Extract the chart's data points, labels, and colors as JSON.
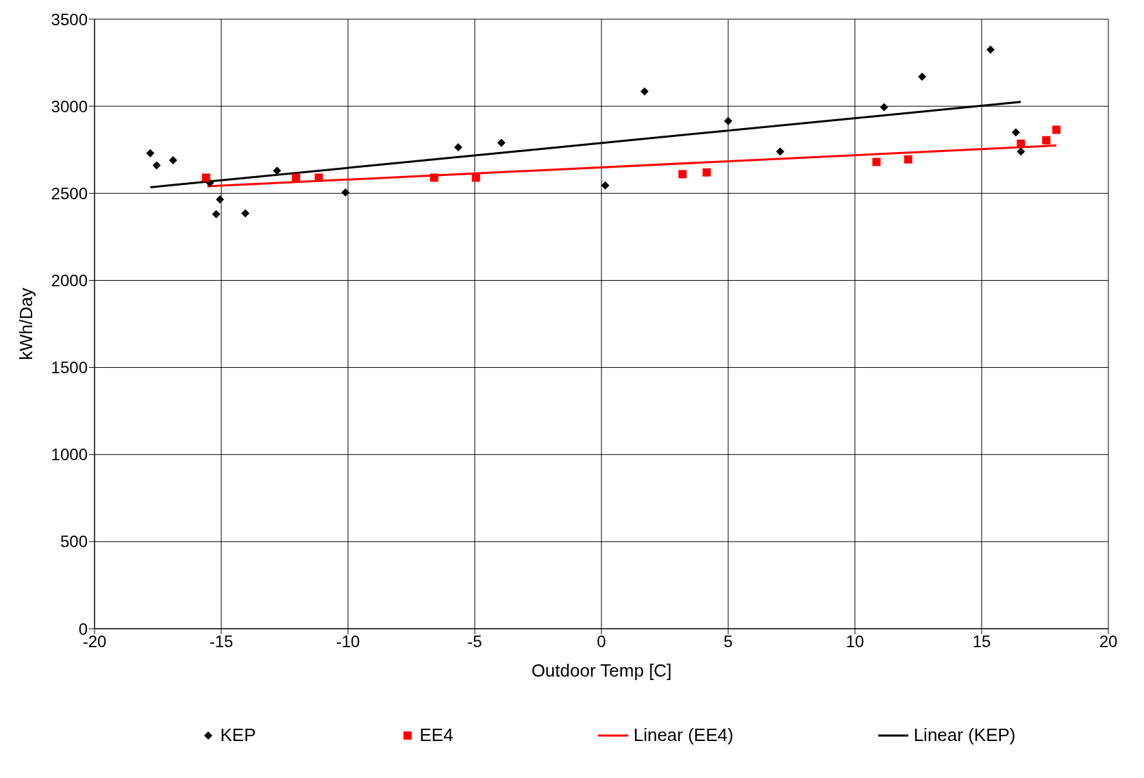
{
  "chart_data": {
    "type": "scatter",
    "xlabel": "Outdoor Temp [C]",
    "ylabel": "kWh/Day",
    "xlim": [
      -20,
      20
    ],
    "xticks": [
      -20,
      -15,
      -10,
      -5,
      0,
      5,
      10,
      15,
      20
    ],
    "ylim": [
      0,
      3500
    ],
    "yticks": [
      0,
      500,
      1000,
      1500,
      2000,
      2500,
      3000,
      3500
    ],
    "grid": true,
    "legend": "bottom",
    "series": [
      {
        "name": "KEP",
        "marker": "diamond",
        "color": "#000000",
        "x": [
          -17.8,
          -17.55,
          -16.9,
          -15.45,
          -15.2,
          -15.05,
          -14.05,
          -12.8,
          -10.1,
          -5.65,
          -3.95,
          0.15,
          1.7,
          5.0,
          7.05,
          11.15,
          12.65,
          15.35,
          16.35,
          16.55
        ],
        "values": [
          2730,
          2660,
          2690,
          2560,
          2380,
          2465,
          2385,
          2630,
          2505,
          2765,
          2790,
          2545,
          3085,
          2915,
          2740,
          2995,
          3170,
          3325,
          2850,
          2740
        ]
      },
      {
        "name": "EE4",
        "marker": "square",
        "color": "#ff0000",
        "x": [
          -15.6,
          -12.05,
          -11.15,
          -6.6,
          -4.95,
          3.2,
          4.15,
          10.85,
          12.1,
          16.55,
          17.55,
          17.95
        ],
        "values": [
          2590,
          2590,
          2590,
          2590,
          2590,
          2610,
          2620,
          2680,
          2695,
          2785,
          2805,
          2865
        ]
      },
      {
        "name": "Linear (EE4)",
        "type": "line",
        "marker": "none",
        "color": "#ff0000",
        "x": [
          -15.55,
          17.95
        ],
        "values": [
          2540,
          2775
        ]
      },
      {
        "name": "Linear (KEP)",
        "type": "line",
        "marker": "none",
        "color": "#000000",
        "x": [
          -17.8,
          16.55
        ],
        "values": [
          2535,
          3025
        ]
      }
    ]
  }
}
